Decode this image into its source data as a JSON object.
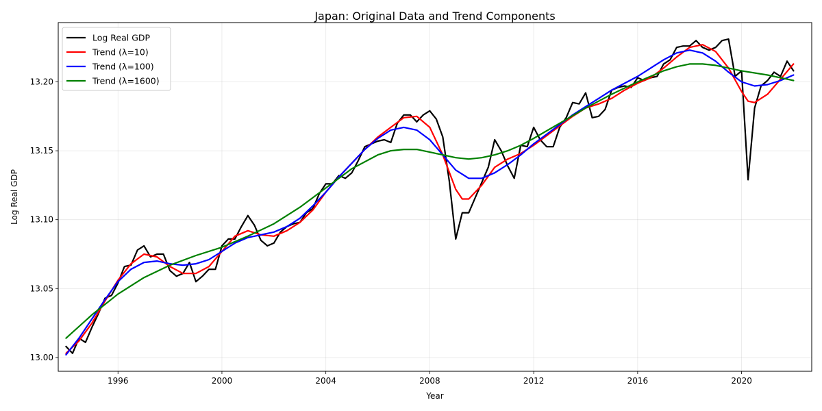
{
  "chart_data": {
    "type": "line",
    "title": "Japan: Original Data and Trend Components",
    "xlabel": "Year",
    "ylabel": "Log Real GDP",
    "xlim": [
      1993.7,
      2022.7
    ],
    "ylim": [
      12.99,
      13.243
    ],
    "xticks": [
      1996,
      2000,
      2004,
      2008,
      2012,
      2016,
      2020
    ],
    "yticks": [
      13.0,
      13.05,
      13.1,
      13.15,
      13.2
    ],
    "grid": true,
    "legend_position": "top-left",
    "series": [
      {
        "name": "Log Real GDP",
        "color": "#000000",
        "x": [
          1994.0,
          1994.25,
          1994.5,
          1994.75,
          1995.0,
          1995.25,
          1995.5,
          1995.75,
          1996.0,
          1996.25,
          1996.5,
          1996.75,
          1997.0,
          1997.25,
          1997.5,
          1997.75,
          1998.0,
          1998.25,
          1998.5,
          1998.75,
          1999.0,
          1999.25,
          1999.5,
          1999.75,
          2000.0,
          2000.25,
          2000.5,
          2000.75,
          2001.0,
          2001.25,
          2001.5,
          2001.75,
          2002.0,
          2002.25,
          2002.5,
          2002.75,
          2003.0,
          2003.25,
          2003.5,
          2003.75,
          2004.0,
          2004.25,
          2004.5,
          2004.75,
          2005.0,
          2005.25,
          2005.5,
          2005.75,
          2006.0,
          2006.25,
          2006.5,
          2006.75,
          2007.0,
          2007.25,
          2007.5,
          2007.75,
          2008.0,
          2008.25,
          2008.5,
          2008.75,
          2009.0,
          2009.25,
          2009.5,
          2009.75,
          2010.0,
          2010.25,
          2010.5,
          2010.75,
          2011.0,
          2011.25,
          2011.5,
          2011.75,
          2012.0,
          2012.25,
          2012.5,
          2012.75,
          2013.0,
          2013.25,
          2013.5,
          2013.75,
          2014.0,
          2014.25,
          2014.5,
          2014.75,
          2015.0,
          2015.25,
          2015.5,
          2015.75,
          2016.0,
          2016.25,
          2016.5,
          2016.75,
          2017.0,
          2017.25,
          2017.5,
          2017.75,
          2018.0,
          2018.25,
          2018.5,
          2018.75,
          2019.0,
          2019.25,
          2019.5,
          2019.75,
          2020.0,
          2020.25,
          2020.5,
          2020.75,
          2021.0,
          2021.25,
          2021.5,
          2021.75,
          2022.0
        ],
        "y": [
          13.008,
          13.003,
          13.014,
          13.011,
          13.022,
          13.032,
          13.043,
          13.045,
          13.054,
          13.066,
          13.067,
          13.078,
          13.081,
          13.073,
          13.075,
          13.075,
          13.063,
          13.059,
          13.061,
          13.069,
          13.055,
          13.059,
          13.064,
          13.064,
          13.081,
          13.086,
          13.086,
          13.095,
          13.103,
          13.096,
          13.085,
          13.081,
          13.083,
          13.091,
          13.095,
          13.097,
          13.098,
          13.105,
          13.108,
          13.119,
          13.126,
          13.126,
          13.132,
          13.13,
          13.134,
          13.143,
          13.153,
          13.155,
          13.157,
          13.158,
          13.156,
          13.17,
          13.176,
          13.176,
          13.171,
          13.176,
          13.179,
          13.173,
          13.16,
          13.128,
          13.086,
          13.105,
          13.105,
          13.116,
          13.127,
          13.138,
          13.158,
          13.15,
          13.139,
          13.13,
          13.154,
          13.153,
          13.167,
          13.158,
          13.153,
          13.153,
          13.167,
          13.174,
          13.185,
          13.184,
          13.192,
          13.174,
          13.175,
          13.18,
          13.194,
          13.196,
          13.197,
          13.196,
          13.203,
          13.201,
          13.203,
          13.204,
          13.213,
          13.216,
          13.225,
          13.226,
          13.226,
          13.23,
          13.225,
          13.223,
          13.225,
          13.23,
          13.231,
          13.204,
          13.208,
          13.129,
          13.181,
          13.197,
          13.201,
          13.207,
          13.204,
          13.215,
          13.208
        ]
      },
      {
        "name": "Trend (λ=10)",
        "color": "#ff0000",
        "x": [
          1994.0,
          1994.5,
          1995.0,
          1995.5,
          1996.0,
          1996.5,
          1997.0,
          1997.5,
          1998.0,
          1998.5,
          1999.0,
          1999.5,
          2000.0,
          2000.5,
          2001.0,
          2001.5,
          2002.0,
          2002.5,
          2003.0,
          2003.5,
          2004.0,
          2004.5,
          2005.0,
          2005.5,
          2006.0,
          2006.5,
          2007.0,
          2007.5,
          2008.0,
          2008.5,
          2009.0,
          2009.25,
          2009.5,
          2010.0,
          2010.5,
          2011.0,
          2011.5,
          2012.0,
          2012.5,
          2013.0,
          2013.5,
          2014.0,
          2014.5,
          2015.0,
          2015.5,
          2016.0,
          2016.5,
          2017.0,
          2017.5,
          2018.0,
          2018.5,
          2019.0,
          2019.5,
          2020.0,
          2020.25,
          2020.5,
          2021.0,
          2021.5,
          2022.0
        ],
        "y": [
          13.003,
          13.012,
          13.025,
          13.041,
          13.056,
          13.068,
          13.075,
          13.073,
          13.066,
          13.061,
          13.061,
          13.066,
          13.077,
          13.088,
          13.092,
          13.089,
          13.088,
          13.092,
          13.098,
          13.107,
          13.12,
          13.131,
          13.141,
          13.151,
          13.16,
          13.167,
          13.174,
          13.175,
          13.167,
          13.147,
          13.122,
          13.115,
          13.115,
          13.125,
          13.138,
          13.144,
          13.148,
          13.154,
          13.161,
          13.168,
          13.175,
          13.181,
          13.184,
          13.188,
          13.194,
          13.199,
          13.203,
          13.21,
          13.218,
          13.225,
          13.227,
          13.222,
          13.21,
          13.193,
          13.186,
          13.185,
          13.191,
          13.202,
          13.213
        ]
      },
      {
        "name": "Trend (λ=100)",
        "color": "#0000ff",
        "x": [
          1994.0,
          1994.5,
          1995.0,
          1995.5,
          1996.0,
          1996.5,
          1997.0,
          1997.5,
          1998.0,
          1998.5,
          1999.0,
          1999.5,
          2000.0,
          2000.5,
          2001.0,
          2001.5,
          2002.0,
          2002.5,
          2003.0,
          2003.5,
          2004.0,
          2004.5,
          2005.0,
          2005.5,
          2006.0,
          2006.5,
          2007.0,
          2007.5,
          2008.0,
          2008.5,
          2009.0,
          2009.5,
          2010.0,
          2010.5,
          2011.0,
          2011.5,
          2012.0,
          2012.5,
          2013.0,
          2013.5,
          2014.0,
          2014.5,
          2015.0,
          2015.5,
          2016.0,
          2016.5,
          2017.0,
          2017.5,
          2018.0,
          2018.5,
          2019.0,
          2019.5,
          2020.0,
          2020.5,
          2021.0,
          2021.5,
          2022.0
        ],
        "y": [
          13.002,
          13.014,
          13.028,
          13.042,
          13.055,
          13.064,
          13.069,
          13.07,
          13.068,
          13.067,
          13.068,
          13.071,
          13.077,
          13.083,
          13.087,
          13.089,
          13.091,
          13.095,
          13.101,
          13.11,
          13.12,
          13.131,
          13.141,
          13.151,
          13.159,
          13.165,
          13.167,
          13.165,
          13.158,
          13.147,
          13.136,
          13.13,
          13.13,
          13.134,
          13.14,
          13.147,
          13.155,
          13.162,
          13.169,
          13.176,
          13.182,
          13.188,
          13.194,
          13.199,
          13.204,
          13.21,
          13.216,
          13.221,
          13.223,
          13.221,
          13.215,
          13.207,
          13.2,
          13.197,
          13.198,
          13.201,
          13.205
        ]
      },
      {
        "name": "Trend (λ=1600)",
        "color": "#008000",
        "x": [
          1994.0,
          1995.0,
          1996.0,
          1997.0,
          1998.0,
          1999.0,
          2000.0,
          2001.0,
          2002.0,
          2003.0,
          2004.0,
          2005.0,
          2006.0,
          2006.5,
          2007.0,
          2007.5,
          2008.0,
          2008.5,
          2009.0,
          2009.5,
          2010.0,
          2010.5,
          2011.0,
          2011.5,
          2012.0,
          2013.0,
          2014.0,
          2015.0,
          2016.0,
          2017.0,
          2017.5,
          2018.0,
          2018.5,
          2019.0,
          2019.5,
          2020.0,
          2021.0,
          2022.0
        ],
        "y": [
          13.014,
          13.031,
          13.046,
          13.058,
          13.067,
          13.074,
          13.08,
          13.088,
          13.097,
          13.109,
          13.123,
          13.137,
          13.147,
          13.15,
          13.151,
          13.151,
          13.149,
          13.147,
          13.145,
          13.144,
          13.145,
          13.147,
          13.15,
          13.154,
          13.159,
          13.17,
          13.181,
          13.191,
          13.2,
          13.208,
          13.211,
          13.213,
          13.213,
          13.212,
          13.21,
          13.208,
          13.205,
          13.201
        ]
      }
    ]
  }
}
